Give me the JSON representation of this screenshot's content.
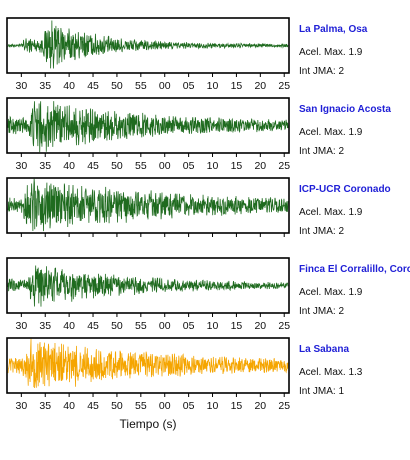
{
  "chart_data": {
    "type": "line",
    "xlabel": "Tiempo (s)",
    "tick_labels": [
      "30",
      "35",
      "40",
      "45",
      "50",
      "55",
      "00",
      "05",
      "10",
      "15",
      "20",
      "25"
    ],
    "panels": [
      {
        "station": "La Palma, Osa",
        "acel": "Acel. Max. 1.9",
        "jma": "Int JMA: 2",
        "color": "#1f6b1f",
        "show_ticks": true,
        "peak_amplitude": 0.95,
        "onset_s": 31,
        "decay": 0.09,
        "noise": 0.05
      },
      {
        "station": "San Ignacio Acosta",
        "acel": "Acel. Max. 1.9",
        "jma": "Int JMA: 2",
        "color": "#1f6b1f",
        "show_ticks": true,
        "peak_amplitude": 0.85,
        "onset_s": 28,
        "decay": 0.045,
        "noise": 0.12
      },
      {
        "station": "ICP-UCR Coronado",
        "acel": "Acel. Max. 1.9",
        "jma": "Int JMA: 2",
        "color": "#1f6b1f",
        "show_ticks": false,
        "peak_amplitude": 0.9,
        "onset_s": 27,
        "decay": 0.03,
        "noise": 0.08
      },
      {
        "station": "Finca El Corralillo, Coronado",
        "acel": "Acel. Max. 1.9",
        "jma": "Int JMA: 2",
        "color": "#1f6b1f",
        "show_ticks": true,
        "peak_amplitude": 0.75,
        "onset_s": 28,
        "decay": 0.05,
        "noise": 0.06
      },
      {
        "station": "La Sabana",
        "acel": "Acel. Max. 1.3",
        "jma": "Int JMA: 1",
        "color": "#f5a500",
        "show_ticks": true,
        "peak_amplitude": 0.85,
        "onset_s": 27,
        "decay": 0.035,
        "noise": 0.1
      }
    ]
  }
}
